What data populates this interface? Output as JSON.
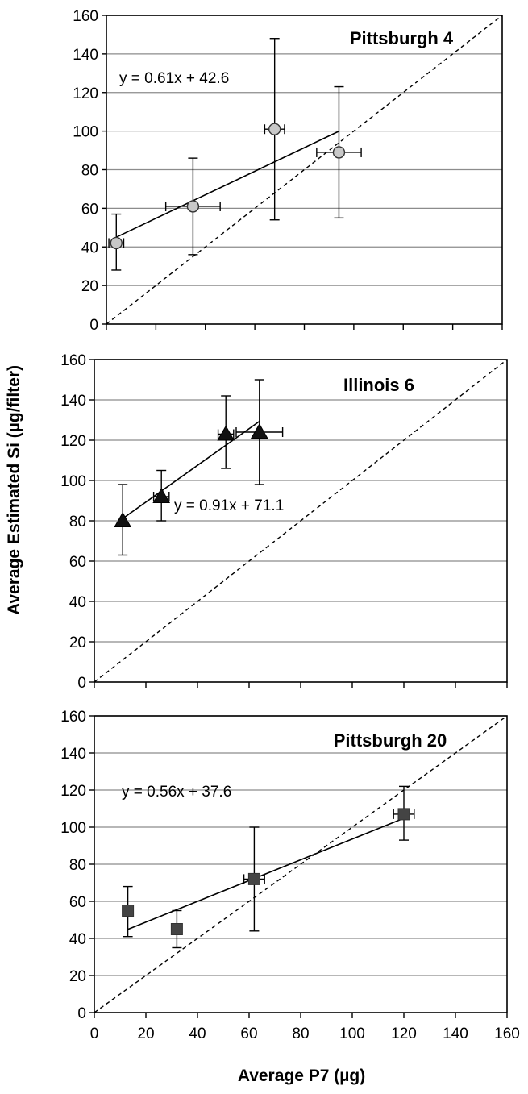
{
  "figure": {
    "ylabel": "Average Estimated  Si (µg/filter)",
    "xlabel": "Average P7 (µg)"
  },
  "chart_data": [
    {
      "type": "scatter",
      "title": "Pittsburgh 4",
      "xlim": [
        0,
        160
      ],
      "ylim": [
        0,
        160
      ],
      "grid": true,
      "y_ticks": [
        0,
        20,
        40,
        60,
        80,
        100,
        120,
        140,
        160
      ],
      "x_tick_labels_shown": false,
      "marker": "circle",
      "marker_color": "#c8c8c8",
      "equation": "y = 0.61x + 42.6",
      "fit": {
        "slope": 0.61,
        "intercept": 42.6,
        "x_range": [
          4,
          94
        ]
      },
      "identity_line": true,
      "points": [
        {
          "x": 4,
          "y": 42,
          "xerr": 3,
          "y_low": 28,
          "y_high": 57
        },
        {
          "x": 35,
          "y": 61,
          "xerr": 11,
          "y_low": 36,
          "y_high": 86
        },
        {
          "x": 68,
          "y": 101,
          "xerr": 4,
          "y_low": 54,
          "y_high": 148
        },
        {
          "x": 94,
          "y": 89,
          "xerr": 9,
          "y_low": 55,
          "y_high": 123
        }
      ]
    },
    {
      "type": "scatter",
      "title": "Illinois 6",
      "xlim": [
        0,
        160
      ],
      "ylim": [
        0,
        160
      ],
      "grid": true,
      "y_ticks": [
        0,
        20,
        40,
        60,
        80,
        100,
        120,
        140,
        160
      ],
      "x_tick_labels_shown": false,
      "marker": "triangle",
      "marker_color": "#111111",
      "equation": "y = 0.91x + 71.1",
      "fit": {
        "slope": 0.91,
        "intercept": 71.1,
        "x_range": [
          11,
          64
        ]
      },
      "identity_line": true,
      "points": [
        {
          "x": 11,
          "y": 80,
          "xerr": 0,
          "y_low": 63,
          "y_high": 98
        },
        {
          "x": 26,
          "y": 92,
          "xerr": 3,
          "y_low": 80,
          "y_high": 105
        },
        {
          "x": 51,
          "y": 123,
          "xerr": 3,
          "y_low": 106,
          "y_high": 142
        },
        {
          "x": 64,
          "y": 124,
          "xerr": 9,
          "y_low": 98,
          "y_high": 150
        }
      ]
    },
    {
      "type": "scatter",
      "title": "Pittsburgh 20",
      "xlim": [
        0,
        160
      ],
      "ylim": [
        0,
        160
      ],
      "grid": true,
      "y_ticks": [
        0,
        20,
        40,
        60,
        80,
        100,
        120,
        140,
        160
      ],
      "x_ticks": [
        0,
        20,
        40,
        60,
        80,
        100,
        120,
        140,
        160
      ],
      "x_tick_labels_shown": true,
      "marker": "square",
      "marker_color": "#444444",
      "equation": "y = 0.56x + 37.6",
      "fit": {
        "slope": 0.56,
        "intercept": 37.6,
        "x_range": [
          13,
          120
        ]
      },
      "identity_line": true,
      "points": [
        {
          "x": 13,
          "y": 55,
          "xerr": 0,
          "y_low": 41,
          "y_high": 68
        },
        {
          "x": 32,
          "y": 45,
          "xerr": 0,
          "y_low": 35,
          "y_high": 55
        },
        {
          "x": 62,
          "y": 72,
          "xerr": 4,
          "y_low": 44,
          "y_high": 100
        },
        {
          "x": 120,
          "y": 107,
          "xerr": 4,
          "y_low": 93,
          "y_high": 122
        }
      ]
    }
  ]
}
